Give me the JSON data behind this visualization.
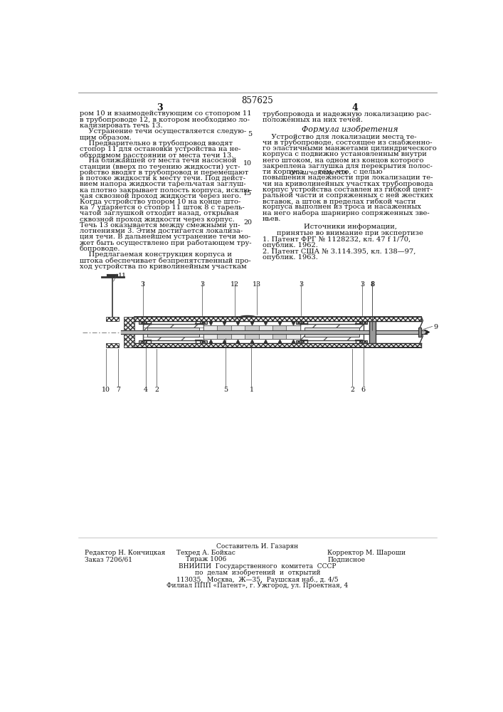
{
  "patent_number": "857625",
  "page_col_left": "3",
  "page_col_right": "4",
  "bg_color": "#ffffff",
  "text_color": "#1a1a1a",
  "col_left_lines": [
    "ром 10 и взаимодействующим со стопором 11",
    "в трубопроводе 12, в котором необходимо ло-",
    "кализировать течь 13.",
    "    Устранение течи осуществляется следую-",
    "щим образом.",
    "    Предварительно в трубопровод вводят",
    "стопор 11 для остановки устройства на не-",
    "обходимом расстоянии от места течи 13.",
    "    На ближайшей от места течи насосной",
    "станции (вверх по течению жидкости) уст-",
    "ройство вводят в трубопровод и перемещают",
    "в потоке жидкости к месту течи. Под дейст-",
    "вием напора жидкости тарельчатая заглуш-",
    "ка плотно закрывает полость корпуса, исклю-",
    "чая сквозной проход жидкости через него.",
    "Когда устройство упором 10 на конце што-",
    "ка 7 ударяется о стопор 11 шток 8 с тарель-",
    "чатой заглушкой отходит назад, открывая",
    "сквозной проход жидкости через корпус.",
    "Течь 13 оказывается между смежными уп-",
    "лотнениями 3. Этим достигается локализа-",
    "ция течи. В дальнейшем устранение течи мо-",
    "жет быть осуществлено при работающем тру-",
    "бопроводе.",
    "    Предлагаемая конструкция корпуса и",
    "штока обеспечивает безпрепятственный про-",
    "ход устройства по криволинейным участкам"
  ],
  "col_right_lines": [
    "трубопровода и надежную локализацию рас-",
    "положенных на них течей."
  ],
  "formula_title": "Формула изобретения",
  "col_right_formula_lines": [
    "    Устройство для локализации места те-",
    "чи в трубопроводе, состоящее из снабженно-",
    "го эластичными манжетами цилиндрического",
    "корпуса с подвижно установленным внутри",
    "него штоком, на одном из концов которого",
    "закреплена заглушка для перекрытия полос-",
    "ти корпуса, отличающееся тем, что, с целью",
    "повышения надежности при локализации те-",
    "чи на криволинейных участках трубопровода",
    "корпус устройства составлен из гибкой цент-",
    "ральной части и сопряженных с ней жестких",
    "вставок, а шток в пределах гибкой части",
    "корпуса выполнен из троса и насаженных",
    "на него набора шарнирно сопряженных зве-",
    "ньев."
  ],
  "italic_line_idx": 6,
  "italic_word": "отличающееся",
  "sources_title": "Источники информации,",
  "sources_sub": "принятые во внимание при экспертизе",
  "source1": "1. Патент ФРГ № 1128232, кл. 47 f 1/70,",
  "source1b": "опублик. 1962.",
  "source2": "2. Патент США № 3.114.395, кл. 138—97,",
  "source2b": "опублик. 1963.",
  "line_numbers": [
    "5",
    "10",
    "15",
    "20"
  ],
  "footer_composer": "Составитель И. Газарян",
  "footer_editor": "Редактор Н. Кончицкая",
  "footer_tech": "Техред А. Бойкас",
  "footer_corrector": "Корректор М. Шароши",
  "footer_order": "Заказ 7206/61",
  "footer_tirazh": "Тираж 1006",
  "footer_podpisnoe": "Подписное",
  "footer_vniipion": "ВНИИПИ  Государственного  комитета  СССР",
  "footer_vniipion2": "по  делам  изобретений  и  открытий",
  "footer_address": "113035,  Москва,  Ж—35,  Раушская наб., д. 4/5",
  "footer_filial": "Филиал ППП «Патент», г. Ужгород, ул. Проектная, 4"
}
